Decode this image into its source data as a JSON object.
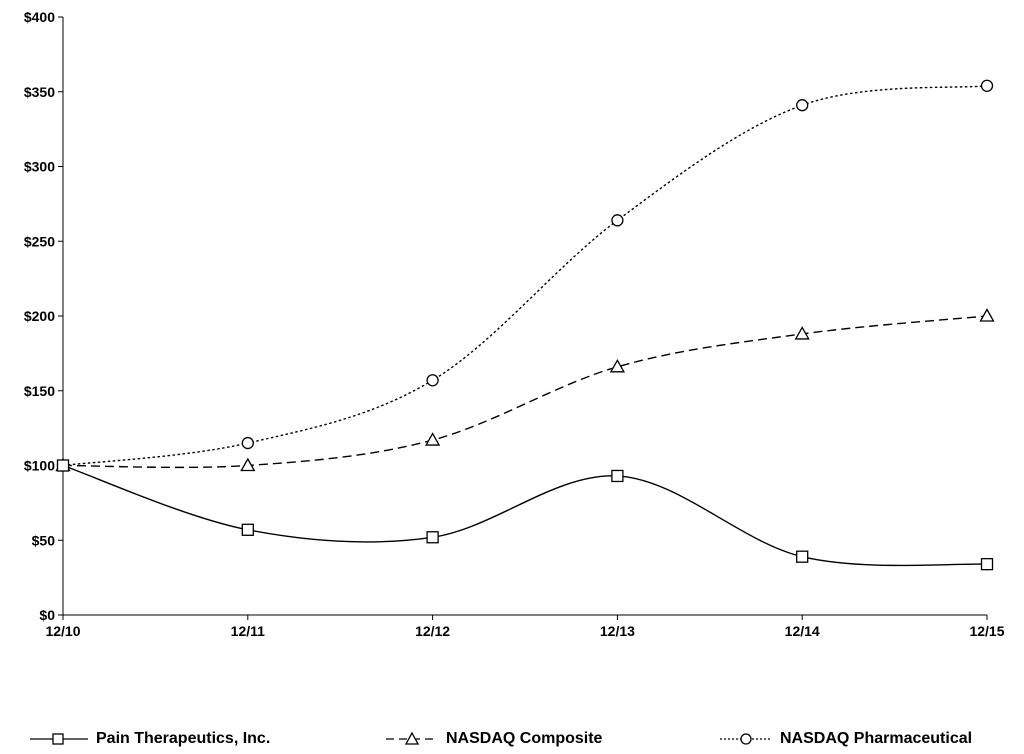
{
  "chart_data": {
    "type": "line",
    "title": "",
    "xlabel": "",
    "ylabel": "",
    "categories": [
      "12/10",
      "12/11",
      "12/12",
      "12/13",
      "12/14",
      "12/15"
    ],
    "y_ticks": [
      "$0",
      "$50",
      "$100",
      "$150",
      "$200",
      "$250",
      "$300",
      "$350",
      "$400"
    ],
    "ylim": [
      0,
      400
    ],
    "grid": false,
    "legend_position": "bottom",
    "series": [
      {
        "name": "Pain Therapeutics, Inc.",
        "values": [
          100,
          57,
          52,
          93,
          39,
          34
        ],
        "marker": "square",
        "dash": "solid",
        "color": "#000000"
      },
      {
        "name": "NASDAQ Composite",
        "values": [
          100,
          100,
          117,
          166,
          188,
          200
        ],
        "marker": "triangle",
        "dash": "dashed",
        "color": "#000000"
      },
      {
        "name": "NASDAQ Pharmaceutical",
        "values": [
          100,
          115,
          157,
          264,
          341,
          354
        ],
        "marker": "circle",
        "dash": "dotted",
        "color": "#000000"
      }
    ]
  }
}
